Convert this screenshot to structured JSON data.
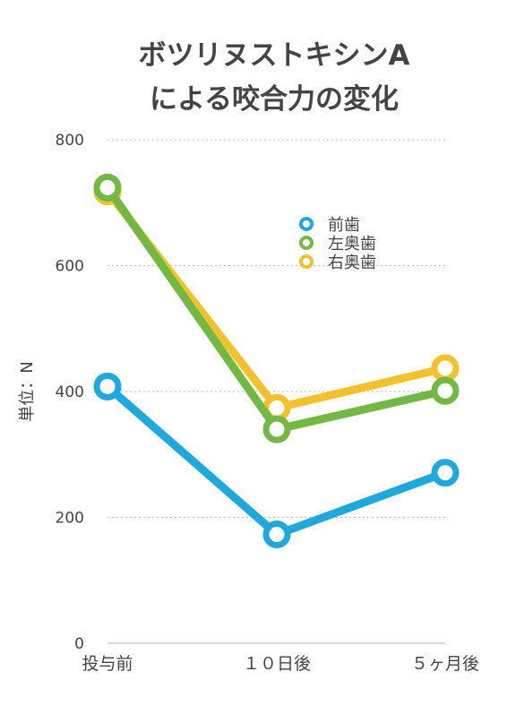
{
  "chart_data": {
    "type": "line",
    "title_lines": [
      "ボツリヌストキシンA",
      "による咬合力の変化"
    ],
    "ylabel": "単位：N",
    "xlabel": "",
    "categories": [
      "投与前",
      "１０日後",
      "５ヶ月後"
    ],
    "ylim": [
      0,
      800
    ],
    "yticks": [
      0,
      200,
      400,
      600,
      800
    ],
    "grid": true,
    "legend_position": "upper-middle-right",
    "series": [
      {
        "name": "前歯",
        "color": "#1fa8dc",
        "values": [
          408,
          173,
          271
        ]
      },
      {
        "name": "左奥歯",
        "color": "#72b843",
        "values": [
          724,
          340,
          401
        ]
      },
      {
        "name": "右奥歯",
        "color": "#f2c12e",
        "values": [
          718,
          374,
          437
        ]
      }
    ]
  }
}
